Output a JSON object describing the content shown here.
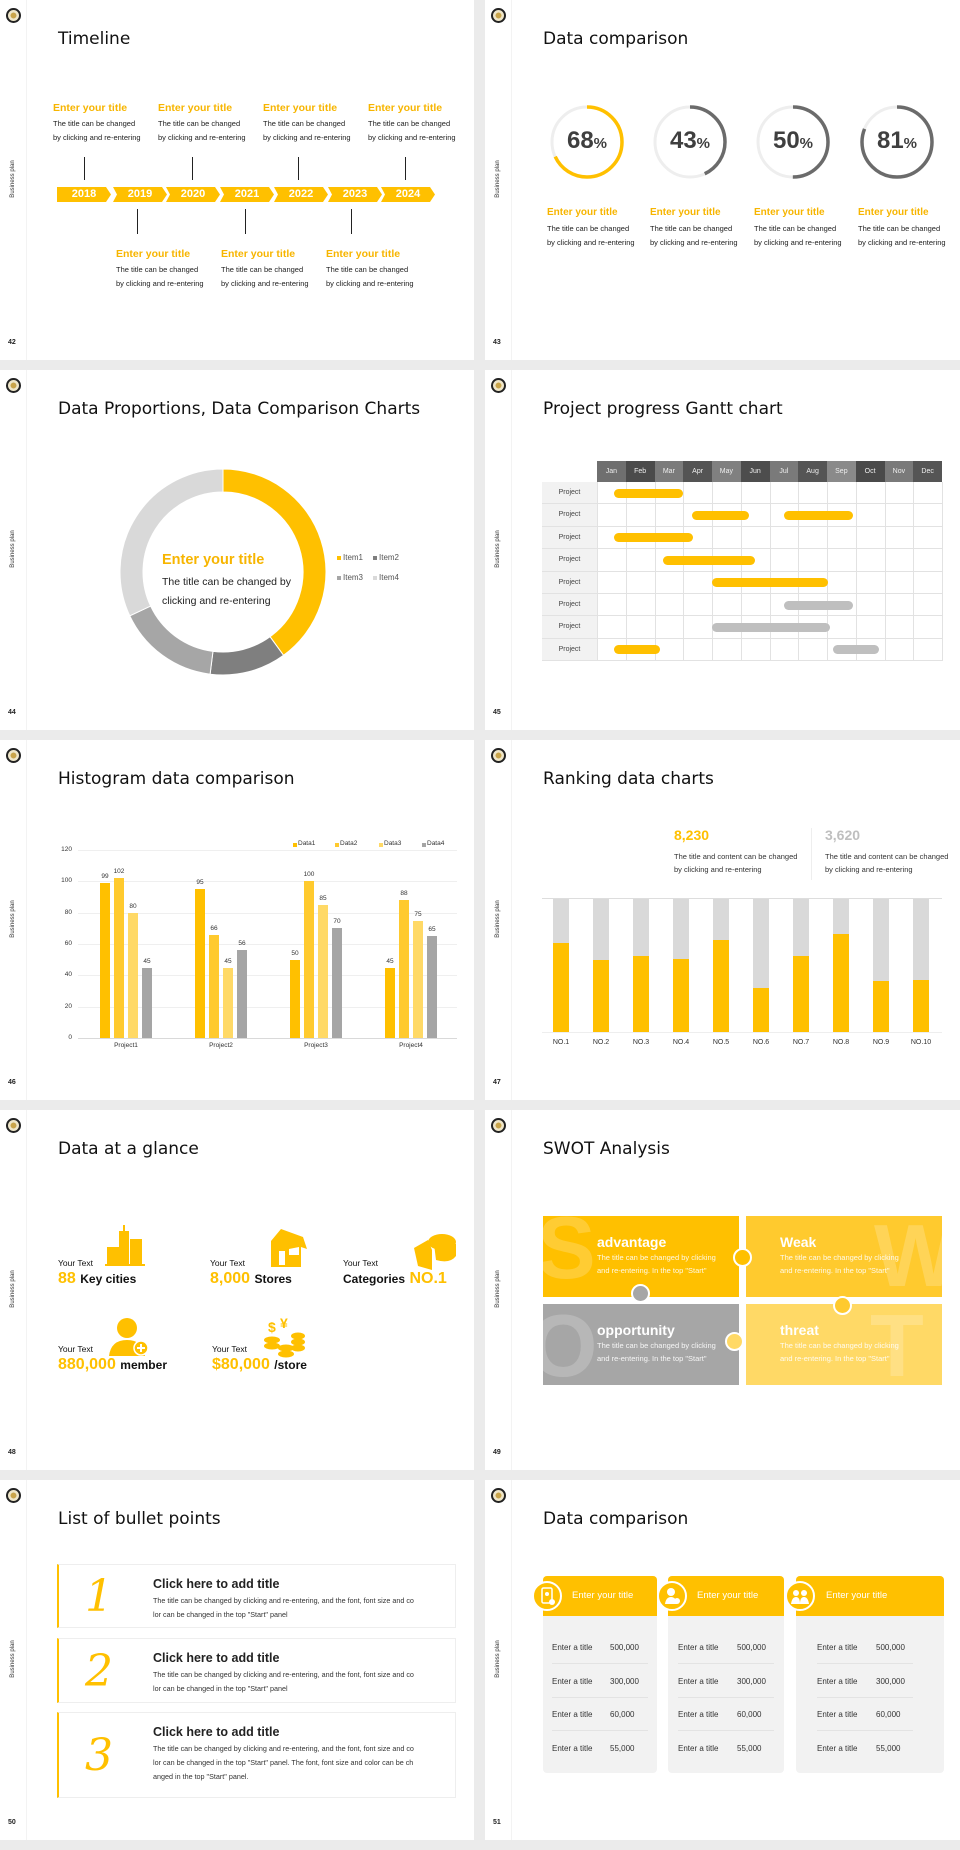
{
  "side_label": "Business plan",
  "colors": {
    "yellow": "#FFC000",
    "title_yellow": "#F7B500",
    "gray": "#A6A6A6",
    "dark_gray": "#6B6B6B",
    "light_gray": "#D9D9D9"
  },
  "slides": [
    {
      "page": "42",
      "title": "Timeline",
      "timeline": {
        "events": [
          {
            "year": "2018",
            "title": "Enter your title",
            "desc": [
              "The title can be changed",
              "by clicking and re-entering"
            ]
          },
          {
            "year": "2019",
            "title": "Enter your title",
            "desc": [
              "The title can be changed",
              "by clicking and re-entering"
            ]
          },
          {
            "year": "2020",
            "title": "Enter your title",
            "desc": [
              "The title can be changed",
              "by clicking and re-entering"
            ]
          },
          {
            "year": "2021",
            "title": "Enter your title",
            "desc": [
              "The title can be changed",
              "by clicking and re-entering"
            ]
          },
          {
            "year": "2022",
            "title": "Enter your title",
            "desc": [
              "The title can be changed",
              "by clicking and re-entering"
            ]
          },
          {
            "year": "2023",
            "title": "Enter your title",
            "desc": [
              "The title can be changed",
              "by clicking and re-entering"
            ]
          },
          {
            "year": "2024",
            "title": "Enter your title",
            "desc": [
              "The title can be changed",
              "by clicking and re-entering"
            ]
          }
        ]
      }
    },
    {
      "page": "43",
      "title": "Data comparison",
      "rings": [
        {
          "value": "68",
          "unit": "%",
          "percent": 68,
          "color": "#FFC000",
          "title": "Enter your title",
          "desc": [
            "The title can be changed",
            "by clicking and re-entering"
          ]
        },
        {
          "value": "43",
          "unit": "%",
          "percent": 43,
          "color": "#6B6B6B",
          "title": "Enter your title",
          "desc": [
            "The title can be changed",
            "by clicking and re-entering"
          ]
        },
        {
          "value": "50",
          "unit": "%",
          "percent": 50,
          "color": "#6B6B6B",
          "title": "Enter your title",
          "desc": [
            "The title can be changed",
            "by clicking and re-entering"
          ]
        },
        {
          "value": "81",
          "unit": "%",
          "percent": 81,
          "color": "#6B6B6B",
          "title": "Enter your title",
          "desc": [
            "The title can be changed",
            "by clicking and re-entering"
          ]
        }
      ]
    },
    {
      "page": "44",
      "title": "Data Proportions, Data Comparison Charts",
      "center": {
        "title": "Enter your title",
        "desc": [
          "The title can be changed by",
          "clicking and re-entering"
        ]
      }
    },
    {
      "page": "45",
      "title": "Project progress Gantt chart",
      "gantt": {
        "months": [
          "Jan",
          "Feb",
          "Mar",
          "Apr",
          "May",
          "Jun",
          "Jul",
          "Aug",
          "Sep",
          "Oct",
          "Nov",
          "Dec"
        ],
        "rows": [
          {
            "label": "Project",
            "bars": [
              {
                "start": 0.6,
                "end": 3.0,
                "color": "#FFC000"
              }
            ]
          },
          {
            "label": "Project",
            "bars": [
              {
                "start": 3.3,
                "end": 5.3,
                "color": "#FFC000"
              },
              {
                "start": 6.5,
                "end": 8.9,
                "color": "#FFC000"
              }
            ]
          },
          {
            "label": "Project",
            "bars": [
              {
                "start": 0.6,
                "end": 3.35,
                "color": "#FFC000"
              }
            ]
          },
          {
            "label": "Project",
            "bars": [
              {
                "start": 2.3,
                "end": 5.5,
                "color": "#FFC000"
              }
            ]
          },
          {
            "label": "Project",
            "bars": [
              {
                "start": 4.0,
                "end": 8.05,
                "color": "#FFC000"
              }
            ]
          },
          {
            "label": "Project",
            "bars": [
              {
                "start": 6.5,
                "end": 8.9,
                "color": "#BFBFBF"
              }
            ]
          },
          {
            "label": "Project",
            "bars": [
              {
                "start": 4.0,
                "end": 8.1,
                "color": "#BFBFBF"
              }
            ]
          },
          {
            "label": "Project",
            "bars": [
              {
                "start": 0.6,
                "end": 2.2,
                "color": "#FFC000"
              },
              {
                "start": 8.2,
                "end": 9.8,
                "color": "#BFBFBF"
              }
            ]
          }
        ]
      }
    },
    {
      "page": "46",
      "title": "Histogram data comparison"
    },
    {
      "page": "47",
      "title": "Ranking data charts",
      "stats": [
        {
          "value": "8,230",
          "color": "#FFC000",
          "desc": [
            "The title and content can be changed",
            "by clicking and re-entering"
          ]
        },
        {
          "value": "3,620",
          "color": "#BFBFBF",
          "desc": [
            "The title and content can be changed",
            "by clicking and re-entering"
          ]
        }
      ]
    },
    {
      "page": "48",
      "title": "Data at a glance",
      "items": [
        {
          "label": "Your Text",
          "value": "88",
          "unit": "Key cities",
          "icon": "buildings-icon"
        },
        {
          "label": "Your Text",
          "value": "8,000",
          "unit": "Stores",
          "icon": "store-icon"
        },
        {
          "label": "Your Text",
          "prefix": "Categories",
          "value": "NO.1",
          "icon": "cheese-icon"
        },
        {
          "label": "Your Text",
          "value": "880,000",
          "unit": "member",
          "icon": "add-member-icon"
        },
        {
          "label": "Your Text",
          "value": "$80,000",
          "unit": "/store",
          "icon": "coins-icon"
        }
      ]
    },
    {
      "page": "49",
      "title": "SWOT Analysis",
      "swot": [
        {
          "letter": "S",
          "title": "advantage",
          "color": "#FFC000",
          "desc": [
            "The title can be changed by clicking",
            "and re-entering. In the top \"Start\""
          ]
        },
        {
          "letter": "W",
          "title": "Weak",
          "color": "#FFCA2E",
          "desc": [
            "The title can be changed by clicking",
            "and re-entering. In the top \"Start\""
          ]
        },
        {
          "letter": "O",
          "title": "opportunity",
          "color": "#A6A6A6",
          "desc": [
            "The title can be changed by clicking",
            "and re-entering. In the top \"Start\""
          ]
        },
        {
          "letter": "T",
          "title": "threat",
          "color": "#FFD966",
          "desc": [
            "The title can be changed by clicking",
            "and re-entering. In the top \"Start\""
          ]
        }
      ]
    },
    {
      "page": "50",
      "title": "List of bullet points",
      "bullets": [
        {
          "number": "1",
          "title": "Click here to add title",
          "desc": [
            "The title can be changed by clicking and re-entering, and the font, font size and co",
            "lor can be changed in the top \"Start\" panel"
          ]
        },
        {
          "number": "2",
          "title": "Click here to add title",
          "desc": [
            "The title can be changed by clicking and re-entering, and the font, font size and co",
            "lor can be changed in the top \"Start\" panel"
          ]
        },
        {
          "number": "3",
          "title": "Click here to add title",
          "desc": [
            "The title can be changed by clicking and re-entering, and the font, font size and co",
            "lor can be changed in the top \"Start\" panel. The font, font size and color can be ch",
            "anged in the top \"Start\" panel."
          ]
        }
      ]
    },
    {
      "page": "51",
      "title": "Data comparison",
      "cards": [
        {
          "title": "Enter your title",
          "icon": "phone-user-icon",
          "rows": [
            {
              "label": "Enter a title",
              "value": "500,000"
            },
            {
              "label": "Enter a title",
              "value": "300,000"
            },
            {
              "label": "Enter a title",
              "value": "60,000"
            },
            {
              "label": "Enter a title",
              "value": "55,000"
            }
          ]
        },
        {
          "title": "Enter your title",
          "icon": "user-shield-icon",
          "rows": [
            {
              "label": "Enter a title",
              "value": "500,000"
            },
            {
              "label": "Enter a title",
              "value": "300,000"
            },
            {
              "label": "Enter a title",
              "value": "60,000"
            },
            {
              "label": "Enter a title",
              "value": "55,000"
            }
          ]
        },
        {
          "title": "Enter your title",
          "icon": "group-icon",
          "rows": [
            {
              "label": "Enter a title",
              "value": "500,000"
            },
            {
              "label": "Enter a title",
              "value": "300,000"
            },
            {
              "label": "Enter a title",
              "value": "60,000"
            },
            {
              "label": "Enter a title",
              "value": "55,000"
            }
          ]
        }
      ]
    }
  ],
  "chart_data": [
    {
      "type": "pie",
      "donut": true,
      "categories": [
        "Item1",
        "Item2",
        "Item3",
        "Item4"
      ],
      "values": [
        40,
        12,
        16,
        32
      ],
      "colors": [
        "#FFC000",
        "#7F7F7F",
        "#A6A6A6",
        "#D9D9D9"
      ],
      "legend_position": "right"
    },
    {
      "type": "bar",
      "categories": [
        "Project1",
        "Project2",
        "Project3",
        "Project4"
      ],
      "series": [
        {
          "name": "Data1",
          "values": [
            99,
            95,
            50,
            45
          ],
          "color": "#FFC000"
        },
        {
          "name": "Data2",
          "values": [
            102,
            66,
            100,
            88
          ],
          "color": "#FFCA2E"
        },
        {
          "name": "Data3",
          "values": [
            80,
            45,
            85,
            75
          ],
          "color": "#FFD966"
        },
        {
          "name": "Data4",
          "values": [
            45,
            56,
            70,
            65
          ],
          "color": "#A5A5A5"
        }
      ],
      "ylim": [
        0,
        120
      ],
      "yticks": [
        "0",
        "20",
        "40",
        "60",
        "80",
        "100",
        "120"
      ],
      "grid": true,
      "legend_position": "top-right",
      "data_labels": true
    },
    {
      "type": "bar",
      "stacked": true,
      "categories": [
        "NO.1",
        "NO.2",
        "NO.3",
        "NO.4",
        "NO.5",
        "NO.6",
        "NO.7",
        "NO.8",
        "NO.9",
        "NO.10"
      ],
      "values": [
        0.67,
        0.54,
        0.57,
        0.55,
        0.69,
        0.33,
        0.57,
        0.74,
        0.38,
        0.39
      ],
      "ylim": [
        0,
        1
      ],
      "colors": [
        "#FFC000",
        "#D9D9D9"
      ]
    }
  ]
}
